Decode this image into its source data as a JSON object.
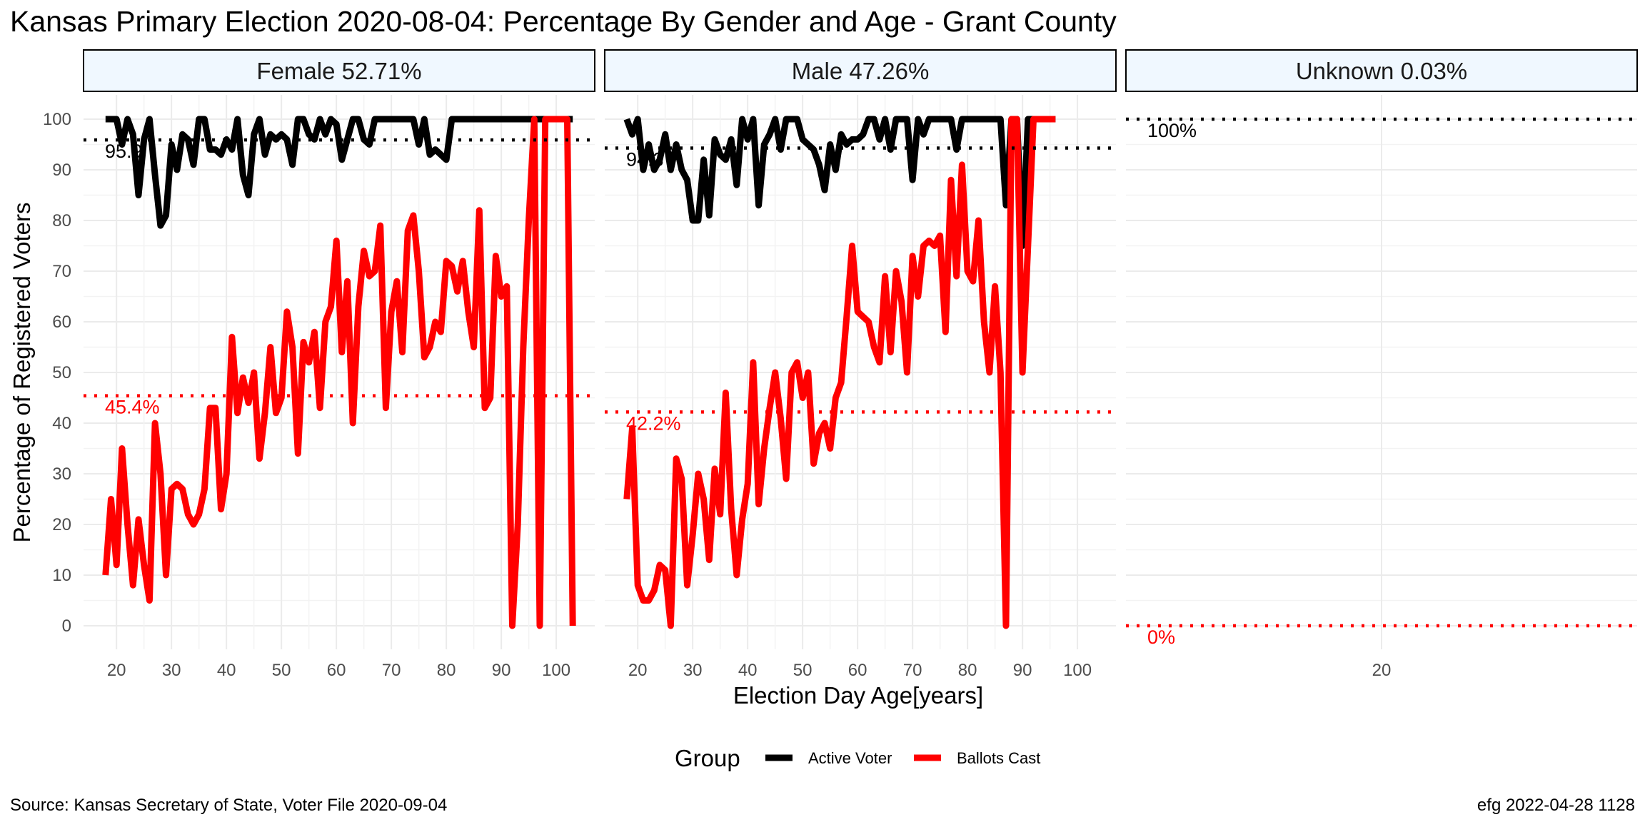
{
  "title": "Kansas Primary Election 2020-08-04:  Percentage By Gender and Age - Grant County",
  "source": "Source:  Kansas Secretary of State, Voter File  2020-09-04",
  "stamp": "efg 2022-04-28 1128",
  "legend": {
    "title": "Group",
    "items": [
      {
        "label": "Active Voter",
        "color": "#000000"
      },
      {
        "label": "Ballots Cast",
        "color": "#ff0000"
      }
    ]
  },
  "colors": {
    "active": "#000000",
    "ballots": "#ff0000",
    "strip_fill": "#f0f8ff",
    "grid": "#ebebeb"
  },
  "chart_data": {
    "type": "line",
    "xlabel": "Election Day Age[years]",
    "ylabel": "Percentage of Registered Voters",
    "ylim": [
      0,
      100
    ],
    "yticks": [
      0,
      10,
      20,
      30,
      40,
      50,
      60,
      70,
      80,
      90,
      100
    ],
    "grid": true,
    "legend_position": "bottom",
    "panels": [
      {
        "strip": "Female 52.71%",
        "xlim": [
          14,
          107
        ],
        "xticks": [
          20,
          30,
          40,
          50,
          60,
          70,
          80,
          90,
          100
        ],
        "reference": {
          "active": 95.9,
          "ballots": 45.4
        },
        "reference_labels": {
          "active": "95.9",
          "ballots": "45.4%"
        },
        "series": [
          {
            "name": "Active Voter",
            "x": [
              18,
              19,
              20,
              21,
              22,
              23,
              24,
              25,
              26,
              27,
              28,
              29,
              30,
              31,
              32,
              33,
              34,
              35,
              36,
              37,
              38,
              39,
              40,
              41,
              42,
              43,
              44,
              45,
              46,
              47,
              48,
              49,
              50,
              51,
              52,
              53,
              54,
              55,
              56,
              57,
              58,
              59,
              60,
              61,
              62,
              63,
              64,
              65,
              66,
              67,
              68,
              69,
              70,
              71,
              72,
              73,
              74,
              75,
              76,
              77,
              78,
              79,
              80,
              81,
              82,
              83,
              84,
              85,
              86,
              87,
              88,
              89,
              90,
              91,
              92,
              93,
              94,
              95,
              96,
              97,
              98,
              99,
              100,
              101,
              102,
              103
            ],
            "y": [
              100,
              100,
              100,
              95,
              100,
              97,
              85,
              96,
              100,
              89,
              79,
              81,
              95,
              90,
              97,
              96,
              91,
              100,
              100,
              94,
              94,
              93,
              96,
              94,
              100,
              89,
              85,
              97,
              100,
              93,
              97,
              96,
              97,
              96,
              91,
              100,
              100,
              97,
              96,
              100,
              97,
              100,
              99,
              92,
              96,
              100,
              100,
              96,
              95,
              100,
              100,
              100,
              100,
              100,
              100,
              100,
              100,
              95,
              100,
              93,
              94,
              93,
              92,
              100,
              100,
              100,
              100,
              100,
              100,
              100,
              100,
              100,
              100,
              100,
              100,
              100,
              100,
              100,
              100,
              100,
              100,
              100,
              100,
              100,
              100,
              100
            ]
          },
          {
            "name": "Ballots Cast",
            "x": [
              18,
              19,
              20,
              21,
              22,
              23,
              24,
              25,
              26,
              27,
              28,
              29,
              30,
              31,
              32,
              33,
              34,
              35,
              36,
              37,
              38,
              39,
              40,
              41,
              42,
              43,
              44,
              45,
              46,
              47,
              48,
              49,
              50,
              51,
              52,
              53,
              54,
              55,
              56,
              57,
              58,
              59,
              60,
              61,
              62,
              63,
              64,
              65,
              66,
              67,
              68,
              69,
              70,
              71,
              72,
              73,
              74,
              75,
              76,
              77,
              78,
              79,
              80,
              81,
              82,
              83,
              84,
              85,
              86,
              87,
              88,
              89,
              90,
              91,
              92,
              93,
              94,
              95,
              96,
              97,
              98,
              99,
              100,
              101,
              102,
              103
            ],
            "y": [
              10,
              25,
              12,
              35,
              20,
              8,
              21,
              12,
              5,
              40,
              30,
              10,
              27,
              28,
              27,
              22,
              20,
              22,
              27,
              43,
              43,
              23,
              30,
              57,
              42,
              49,
              44,
              50,
              33,
              42,
              55,
              42,
              45,
              62,
              55,
              34,
              56,
              52,
              58,
              43,
              60,
              63,
              76,
              54,
              68,
              40,
              63,
              74,
              69,
              70,
              79,
              43,
              62,
              68,
              54,
              78,
              81,
              70,
              53,
              55,
              60,
              58,
              72,
              71,
              66,
              72,
              62,
              55,
              82,
              43,
              45,
              73,
              65,
              67,
              0,
              20,
              55,
              80,
              100,
              0,
              100,
              100,
              100,
              100,
              100,
              0
            ]
          }
        ]
      },
      {
        "strip": "Male 47.26%",
        "xlim": [
          14,
          107
        ],
        "xticks": [
          20,
          30,
          40,
          50,
          60,
          70,
          80,
          90,
          100
        ],
        "reference": {
          "active": 94.3,
          "ballots": 42.2
        },
        "reference_labels": {
          "active": "94.3",
          "ballots": "42.2%"
        },
        "series": [
          {
            "name": "Active Voter",
            "x": [
              18,
              19,
              20,
              21,
              22,
              23,
              24,
              25,
              26,
              27,
              28,
              29,
              30,
              31,
              32,
              33,
              34,
              35,
              36,
              37,
              38,
              39,
              40,
              41,
              42,
              43,
              44,
              45,
              46,
              47,
              48,
              49,
              50,
              51,
              52,
              53,
              54,
              55,
              56,
              57,
              58,
              59,
              60,
              61,
              62,
              63,
              64,
              65,
              66,
              67,
              68,
              69,
              70,
              71,
              72,
              73,
              74,
              75,
              76,
              77,
              78,
              79,
              80,
              81,
              82,
              83,
              84,
              85,
              86,
              87,
              88,
              89,
              90,
              91,
              92,
              93,
              94,
              95,
              96
            ],
            "y": [
              100,
              97,
              100,
              90,
              95,
              90,
              92,
              97,
              90,
              95,
              90,
              88,
              80,
              80,
              92,
              81,
              96,
              93,
              92,
              96,
              87,
              100,
              96,
              100,
              83,
              95,
              97,
              100,
              94,
              100,
              100,
              100,
              96,
              95,
              94,
              91,
              86,
              95,
              90,
              97,
              95,
              96,
              96,
              97,
              100,
              100,
              96,
              100,
              94,
              100,
              100,
              100,
              88,
              100,
              97,
              100,
              100,
              100,
              100,
              100,
              94,
              100,
              100,
              100,
              100,
              100,
              100,
              100,
              100,
              83,
              100,
              100,
              75,
              100,
              100,
              100,
              100,
              100,
              100
            ]
          },
          {
            "name": "Ballots Cast",
            "x": [
              18,
              19,
              20,
              21,
              22,
              23,
              24,
              25,
              26,
              27,
              28,
              29,
              30,
              31,
              32,
              33,
              34,
              35,
              36,
              37,
              38,
              39,
              40,
              41,
              42,
              43,
              44,
              45,
              46,
              47,
              48,
              49,
              50,
              51,
              52,
              53,
              54,
              55,
              56,
              57,
              58,
              59,
              60,
              61,
              62,
              63,
              64,
              65,
              66,
              67,
              68,
              69,
              70,
              71,
              72,
              73,
              74,
              75,
              76,
              77,
              78,
              79,
              80,
              81,
              82,
              83,
              84,
              85,
              86,
              87,
              88,
              89,
              90,
              91,
              92,
              93,
              94,
              95,
              96
            ],
            "y": [
              25,
              39,
              8,
              5,
              5,
              7,
              12,
              11,
              0,
              33,
              29,
              8,
              18,
              30,
              25,
              13,
              31,
              22,
              46,
              23,
              10,
              21,
              28,
              52,
              24,
              35,
              43,
              50,
              41,
              29,
              50,
              52,
              45,
              50,
              32,
              38,
              40,
              35,
              45,
              48,
              61,
              75,
              62,
              61,
              60,
              55,
              52,
              69,
              54,
              70,
              64,
              50,
              73,
              65,
              75,
              76,
              75,
              77,
              58,
              88,
              69,
              91,
              70,
              68,
              80,
              60,
              50,
              67,
              50,
              0,
              100,
              100,
              50,
              75,
              100,
              100,
              100,
              100,
              100
            ]
          }
        ]
      },
      {
        "strip": "Unknown 0.03%",
        "xlim": [
          19,
          21
        ],
        "xticks": [
          20
        ],
        "reference": {
          "active": 100,
          "ballots": 0
        },
        "reference_labels": {
          "active": "100%",
          "ballots": "0%"
        },
        "series": [
          {
            "name": "Active Voter",
            "x": [],
            "y": []
          },
          {
            "name": "Ballots Cast",
            "x": [],
            "y": []
          }
        ]
      }
    ]
  }
}
